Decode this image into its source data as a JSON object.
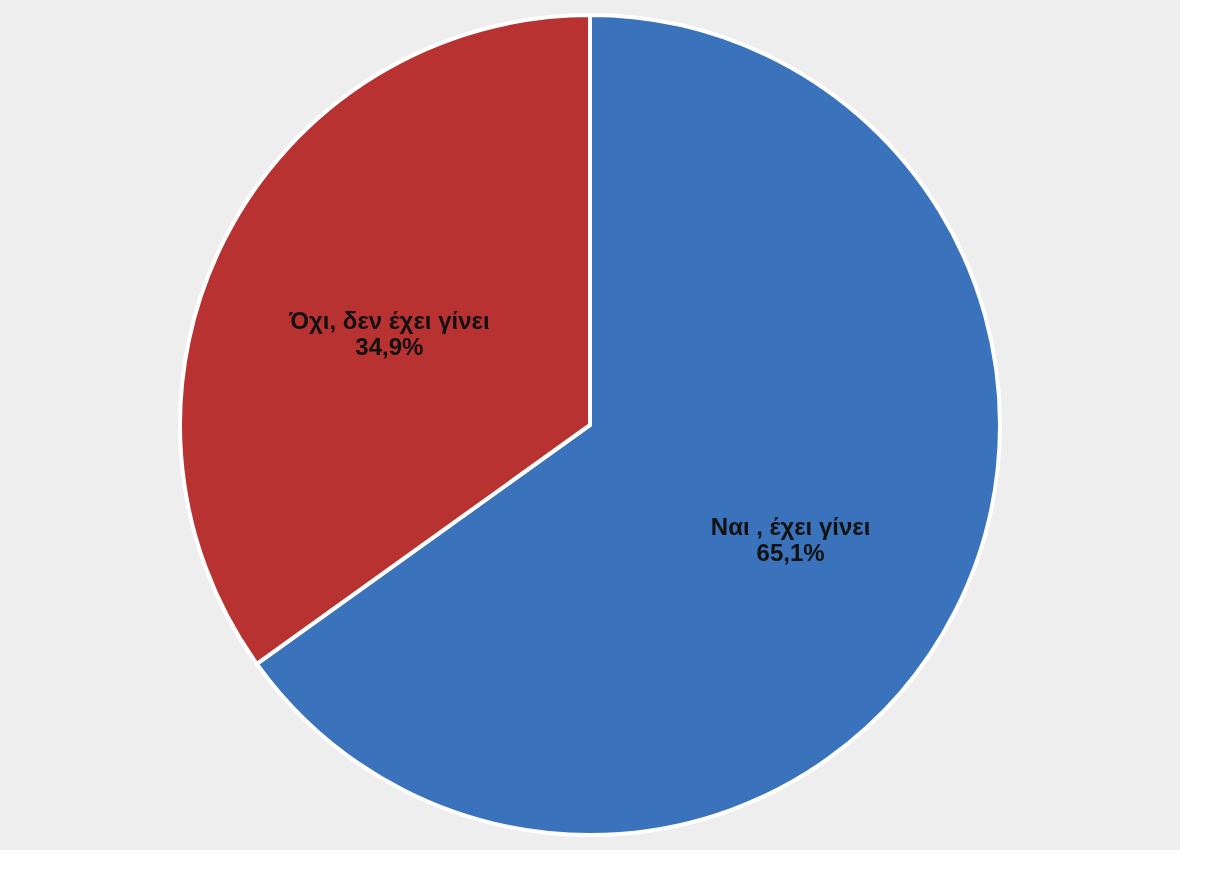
{
  "chart_data": {
    "type": "pie",
    "categories": [
      "Ναι , έχει γίνει",
      "Όχι, δεν έχει γίνει"
    ],
    "values": [
      65.1,
      34.9
    ],
    "colors": [
      "#3a72bb",
      "#b83232"
    ],
    "value_labels": [
      "65,1%",
      "34,9%"
    ]
  }
}
